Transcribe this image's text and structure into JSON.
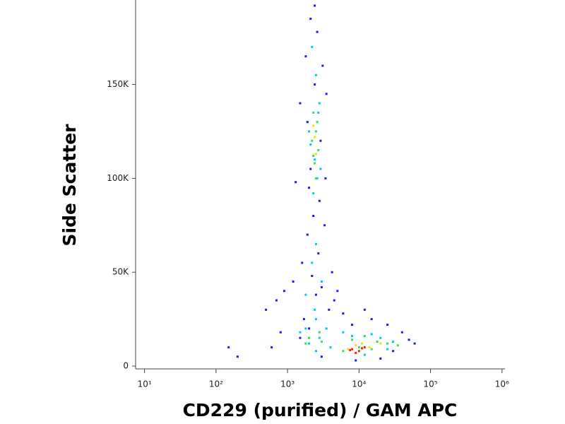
{
  "chart_data": {
    "type": "scatter",
    "x_label": "CD229 (purified) / GAM APC",
    "y_label": "Side Scatter",
    "xlog": true,
    "xlim": [
      7.5,
      1100000
    ],
    "xticks": [
      {
        "value": 10,
        "label": "10¹"
      },
      {
        "value": 100,
        "label": "10²"
      },
      {
        "value": 1000,
        "label": "10³"
      },
      {
        "value": 10000,
        "label": "10⁴"
      },
      {
        "value": 100000,
        "label": "10⁵"
      },
      {
        "value": 1000000,
        "label": "10⁶"
      }
    ],
    "ylim": [
      -1500,
      195000
    ],
    "yticks": [
      0,
      {
        "value": 50000,
        "label": "50K"
      },
      {
        "value": 100000,
        "label": "100K"
      },
      {
        "value": 150000,
        "label": "150K"
      }
    ],
    "series": [
      {
        "color": "#1a1aff",
        "x": [
          2100,
          2600,
          1800,
          3100,
          2400,
          1500,
          3500,
          2000,
          2800,
          1300,
          2300,
          3300,
          1900,
          2700,
          1600,
          4200,
          1200,
          900,
          700,
          500,
          3000,
          2500,
          1700,
          3800,
          2200,
          15000,
          25000,
          40000,
          60000,
          6000,
          8000,
          30000,
          50000,
          12000,
          3000,
          2000,
          1500,
          4500,
          800,
          600,
          2400,
          2900,
          2100,
          3400,
          1900,
          200,
          150,
          5000,
          9000,
          20000
        ],
        "values": [
          185000,
          178000,
          165000,
          160000,
          150000,
          140000,
          145000,
          95000,
          88000,
          98000,
          80000,
          75000,
          70000,
          60000,
          55000,
          50000,
          45000,
          40000,
          35000,
          30000,
          42000,
          38000,
          25000,
          30000,
          48000,
          25000,
          22000,
          18000,
          12000,
          28000,
          22000,
          8000,
          14000,
          30000,
          5000,
          20000,
          15000,
          35000,
          18000,
          10000,
          192000,
          120000,
          105000,
          100000,
          130000,
          5000,
          10000,
          40000,
          3000,
          4000
        ]
      },
      {
        "color": "#00c8ff",
        "x": [
          2200,
          2500,
          2800,
          2000,
          2400,
          2600,
          2300,
          2700,
          2100,
          2900,
          2500,
          2200,
          3000,
          1800,
          2400,
          3500,
          2800,
          1500,
          2000,
          2500,
          6000,
          8000,
          15000,
          20000,
          30000,
          12000,
          4000,
          2500,
          1800,
          25000
        ],
        "values": [
          170000,
          155000,
          140000,
          125000,
          110000,
          100000,
          92000,
          135000,
          118000,
          105000,
          65000,
          55000,
          45000,
          38000,
          30000,
          20000,
          15000,
          18000,
          12000,
          25000,
          18000,
          16000,
          17000,
          15000,
          13000,
          6000,
          10000,
          8000,
          20000,
          9000
        ]
      },
      {
        "color": "#30e060",
        "x": [
          2300,
          2500,
          2700,
          2400,
          2200,
          2600,
          2500,
          2300,
          2000,
          2800,
          1800,
          8000,
          12000,
          18000,
          25000,
          35000,
          6000,
          10000,
          15000,
          3000
        ],
        "values": [
          135000,
          125000,
          115000,
          108000,
          120000,
          130000,
          100000,
          112000,
          15000,
          18000,
          12000,
          14000,
          16000,
          13000,
          12000,
          11000,
          8000,
          10000,
          9000,
          13000
        ]
      },
      {
        "color": "#f0e000",
        "x": [
          2400,
          2500,
          2300,
          9000,
          11000,
          14000,
          7000,
          20000
        ],
        "values": [
          122000,
          113000,
          128000,
          11000,
          12000,
          10000,
          9000,
          12000
        ]
      },
      {
        "color": "#ff2000",
        "x": [
          8000,
          10000,
          12000,
          9000,
          11000,
          7500
        ],
        "values": [
          9000,
          8000,
          10000,
          7000,
          9500,
          8500
        ]
      }
    ]
  }
}
